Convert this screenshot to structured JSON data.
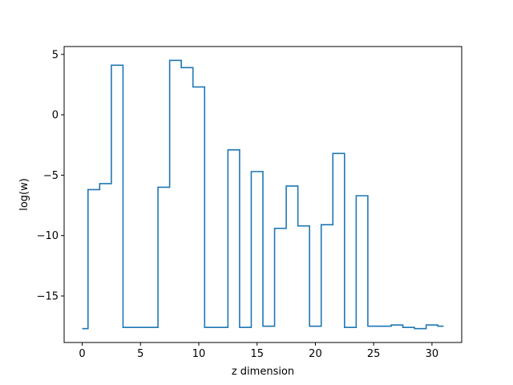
{
  "chart_data": {
    "type": "line",
    "drawstyle": "steps-mid",
    "xlabel": "z dimension",
    "ylabel": "log(w)",
    "xlim": [
      -1.55,
      32.55
    ],
    "ylim": [
      -18.85,
      5.65
    ],
    "xticks": [
      0,
      5,
      10,
      15,
      20,
      25,
      30
    ],
    "yticks": [
      -15,
      -10,
      -5,
      0,
      5
    ],
    "ytick_labels": [
      "−15",
      "−10",
      "−5",
      "0",
      "5"
    ],
    "grid": false,
    "series": [
      {
        "color": "#1f77b4",
        "x": [
          0,
          1,
          2,
          3,
          4,
          5,
          6,
          7,
          8,
          9,
          10,
          11,
          12,
          13,
          14,
          15,
          16,
          17,
          18,
          19,
          20,
          21,
          22,
          23,
          24,
          25,
          26,
          27,
          28,
          29,
          30,
          31
        ],
        "y": [
          -17.7,
          -6.2,
          -5.7,
          4.1,
          -17.6,
          -17.6,
          -17.6,
          -6.0,
          4.5,
          3.9,
          2.3,
          -17.6,
          -17.6,
          -2.9,
          -17.6,
          -4.7,
          -17.5,
          -9.4,
          -5.9,
          -9.2,
          -17.5,
          -9.1,
          -3.2,
          -17.6,
          -6.7,
          -17.5,
          -17.5,
          -17.4,
          -17.6,
          -17.7,
          -17.4,
          -17.5
        ]
      }
    ]
  }
}
